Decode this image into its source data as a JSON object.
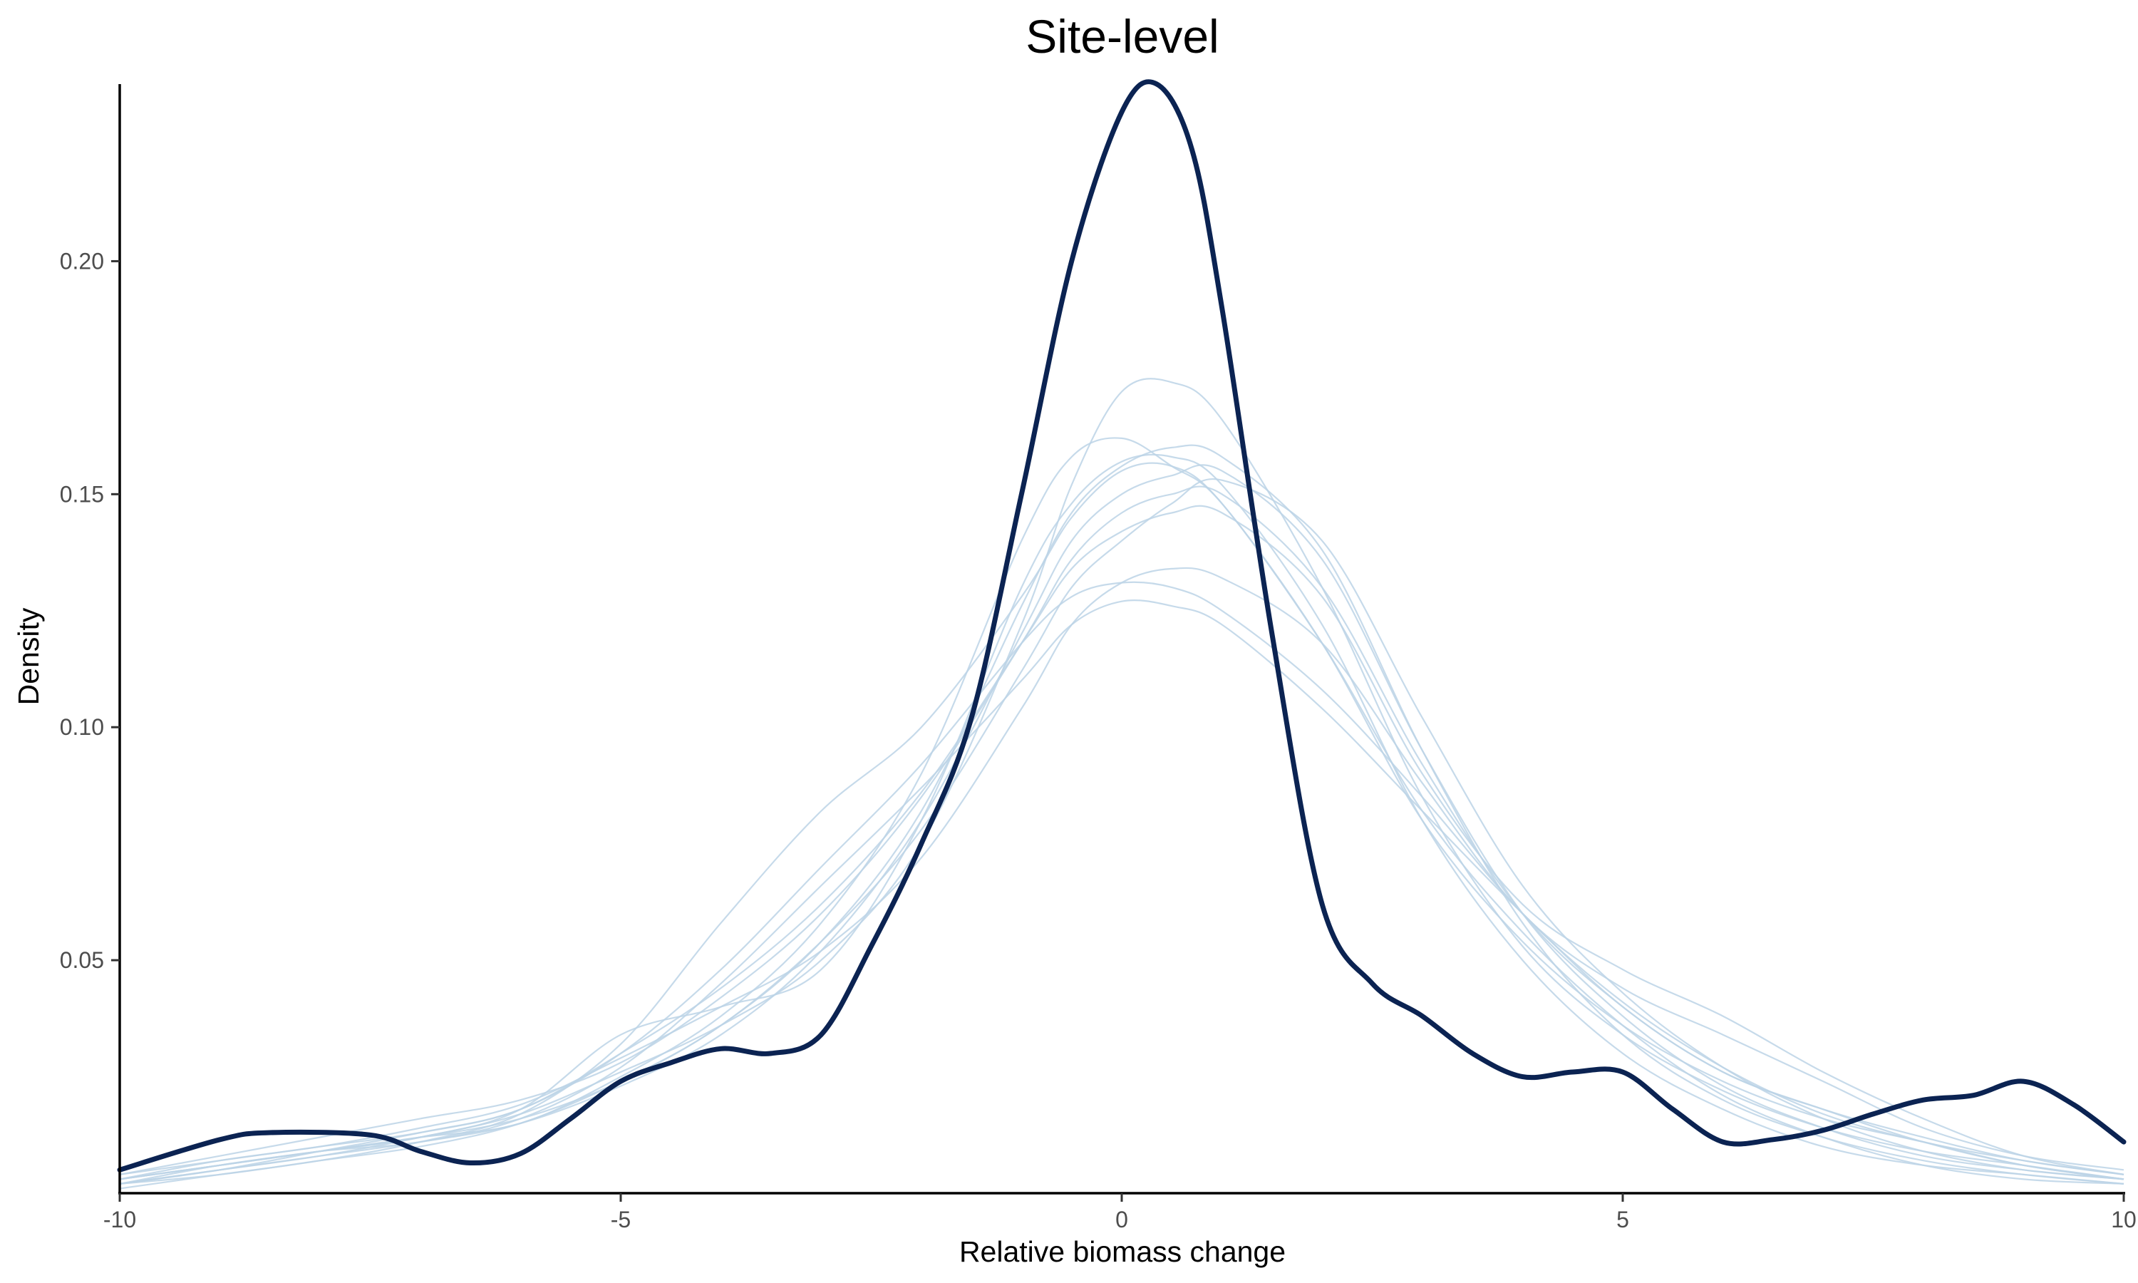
{
  "chart_data": {
    "type": "line",
    "title": "Site-level",
    "xlabel": "Relative biomass change",
    "ylabel": "Density",
    "xlim": [
      -10,
      10
    ],
    "ylim": [
      0.0,
      0.238
    ],
    "x_ticks": [
      -10,
      -5,
      0,
      5,
      10
    ],
    "x_tick_labels": [
      "-10",
      "-5",
      "0",
      "5",
      "10"
    ],
    "y_ticks": [
      0.05,
      0.1,
      0.15,
      0.2
    ],
    "y_tick_labels": [
      "0.05",
      "0.10",
      "0.15",
      "0.20"
    ],
    "grid": false,
    "legend": "none",
    "colors": {
      "observed": "#0b2352",
      "simulated": "#bcd3e6"
    },
    "observed": {
      "x": [
        -10,
        -9,
        -8.5,
        -7.5,
        -7,
        -6.5,
        -6,
        -5.5,
        -5,
        -4.5,
        -4,
        -3.5,
        -3,
        -2.5,
        -2,
        -1.5,
        -1,
        -0.5,
        0,
        0.35,
        0.7,
        1,
        1.5,
        2,
        2.5,
        3,
        3.5,
        4,
        4.5,
        5,
        5.5,
        6,
        6.5,
        7,
        7.5,
        8,
        8.5,
        9,
        9.5,
        10
      ],
      "y": [
        0.005,
        0.0115,
        0.013,
        0.0125,
        0.009,
        0.0065,
        0.0085,
        0.016,
        0.024,
        0.028,
        0.031,
        0.03,
        0.034,
        0.053,
        0.075,
        0.102,
        0.15,
        0.2,
        0.232,
        0.238,
        0.224,
        0.19,
        0.12,
        0.062,
        0.045,
        0.038,
        0.03,
        0.025,
        0.026,
        0.026,
        0.018,
        0.011,
        0.0115,
        0.0135,
        0.017,
        0.02,
        0.021,
        0.024,
        0.019,
        0.011
      ]
    },
    "simulated": {
      "x": [
        -10,
        -9,
        -8,
        -7,
        -6,
        -5,
        -4,
        -3,
        -2,
        -1,
        -0.5,
        0,
        0.5,
        1,
        2,
        3,
        4,
        5,
        6,
        7,
        8,
        9,
        10
      ],
      "series": [
        [
          0.003,
          0.006,
          0.009,
          0.011,
          0.016,
          0.027,
          0.045,
          0.066,
          0.087,
          0.11,
          0.122,
          0.127,
          0.126,
          0.122,
          0.104,
          0.082,
          0.06,
          0.04,
          0.026,
          0.018,
          0.012,
          0.007,
          0.004
        ],
        [
          0.004,
          0.007,
          0.01,
          0.013,
          0.018,
          0.03,
          0.048,
          0.07,
          0.092,
          0.118,
          0.128,
          0.131,
          0.13,
          0.125,
          0.108,
          0.085,
          0.06,
          0.041,
          0.027,
          0.017,
          0.011,
          0.007,
          0.004
        ],
        [
          0.002,
          0.005,
          0.008,
          0.012,
          0.017,
          0.026,
          0.036,
          0.05,
          0.075,
          0.122,
          0.152,
          0.172,
          0.174,
          0.166,
          0.13,
          0.085,
          0.053,
          0.034,
          0.022,
          0.014,
          0.009,
          0.006,
          0.003
        ],
        [
          0.001,
          0.004,
          0.007,
          0.011,
          0.017,
          0.032,
          0.058,
          0.082,
          0.1,
          0.128,
          0.145,
          0.155,
          0.156,
          0.148,
          0.118,
          0.08,
          0.054,
          0.036,
          0.024,
          0.016,
          0.011,
          0.006,
          0.003
        ],
        [
          0.002,
          0.006,
          0.009,
          0.012,
          0.018,
          0.034,
          0.04,
          0.048,
          0.08,
          0.13,
          0.148,
          0.157,
          0.158,
          0.152,
          0.122,
          0.08,
          0.05,
          0.03,
          0.018,
          0.01,
          0.006,
          0.004,
          0.002
        ],
        [
          0.004,
          0.008,
          0.012,
          0.016,
          0.02,
          0.028,
          0.042,
          0.06,
          0.085,
          0.118,
          0.136,
          0.146,
          0.15,
          0.15,
          0.13,
          0.092,
          0.06,
          0.04,
          0.026,
          0.018,
          0.011,
          0.006,
          0.003
        ],
        [
          0.003,
          0.006,
          0.009,
          0.012,
          0.015,
          0.025,
          0.038,
          0.058,
          0.09,
          0.14,
          0.158,
          0.162,
          0.156,
          0.148,
          0.118,
          0.082,
          0.056,
          0.036,
          0.021,
          0.012,
          0.006,
          0.003,
          0.002
        ],
        [
          0.003,
          0.006,
          0.009,
          0.012,
          0.016,
          0.024,
          0.036,
          0.054,
          0.078,
          0.112,
          0.13,
          0.14,
          0.148,
          0.153,
          0.14,
          0.102,
          0.066,
          0.043,
          0.027,
          0.016,
          0.009,
          0.005,
          0.003
        ],
        [
          0.002,
          0.005,
          0.008,
          0.011,
          0.015,
          0.023,
          0.034,
          0.052,
          0.08,
          0.12,
          0.14,
          0.15,
          0.154,
          0.155,
          0.136,
          0.095,
          0.06,
          0.038,
          0.023,
          0.014,
          0.008,
          0.005,
          0.003
        ],
        [
          0.002,
          0.005,
          0.009,
          0.013,
          0.018,
          0.03,
          0.044,
          0.062,
          0.086,
          0.118,
          0.134,
          0.142,
          0.146,
          0.146,
          0.128,
          0.09,
          0.062,
          0.048,
          0.038,
          0.026,
          0.016,
          0.008,
          0.004
        ],
        [
          0.003,
          0.007,
          0.01,
          0.014,
          0.019,
          0.029,
          0.04,
          0.052,
          0.072,
          0.104,
          0.122,
          0.131,
          0.134,
          0.132,
          0.118,
          0.088,
          0.06,
          0.044,
          0.034,
          0.024,
          0.014,
          0.008,
          0.005
        ],
        [
          0.002,
          0.004,
          0.007,
          0.01,
          0.015,
          0.024,
          0.036,
          0.054,
          0.082,
          0.126,
          0.146,
          0.156,
          0.16,
          0.158,
          0.138,
          0.095,
          0.058,
          0.034,
          0.02,
          0.012,
          0.007,
          0.004,
          0.002
        ]
      ]
    }
  }
}
